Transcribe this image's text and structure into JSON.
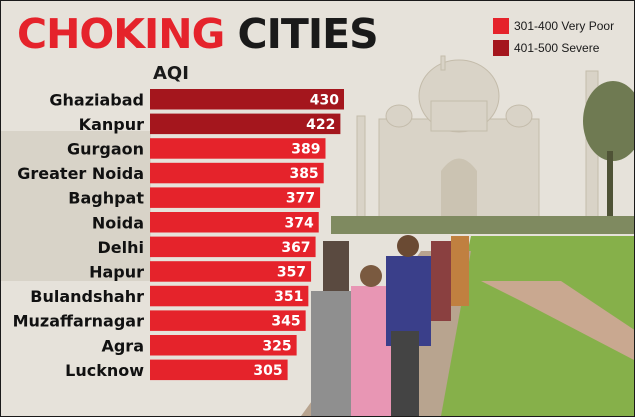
{
  "title": {
    "word1": "CHOKING",
    "word2": "CITIES"
  },
  "legend": [
    {
      "label": "301-400 Very Poor",
      "color": "#e5232b"
    },
    {
      "label": "401-500 Severe",
      "color": "#a4161d"
    }
  ],
  "chart_data": {
    "type": "bar",
    "orientation": "horizontal",
    "title": "CHOKING CITIES",
    "ylabel": "AQI",
    "xlim": [
      0,
      430
    ],
    "grid": false,
    "legend_position": "top-right",
    "categories": [
      "Ghaziabad",
      "Kanpur",
      "Gurgaon",
      "Greater Noida",
      "Baghpat",
      "Noida",
      "Delhi",
      "Hapur",
      "Bulandshahr",
      "Muzaffarnagar",
      "Agra",
      "Lucknow"
    ],
    "values": [
      430,
      422,
      389,
      385,
      377,
      374,
      367,
      357,
      351,
      345,
      325,
      305
    ],
    "data_labels": [
      "430",
      "422",
      "389",
      "385",
      "377",
      "374",
      "367",
      "357",
      "351",
      "345",
      "325",
      "305"
    ],
    "category_bands": [
      {
        "label": "401-500 Severe",
        "min": 401,
        "max": 500,
        "color": "#a4161d"
      },
      {
        "label": "301-400 Very Poor",
        "min": 301,
        "max": 400,
        "color": "#e5232b"
      }
    ]
  }
}
